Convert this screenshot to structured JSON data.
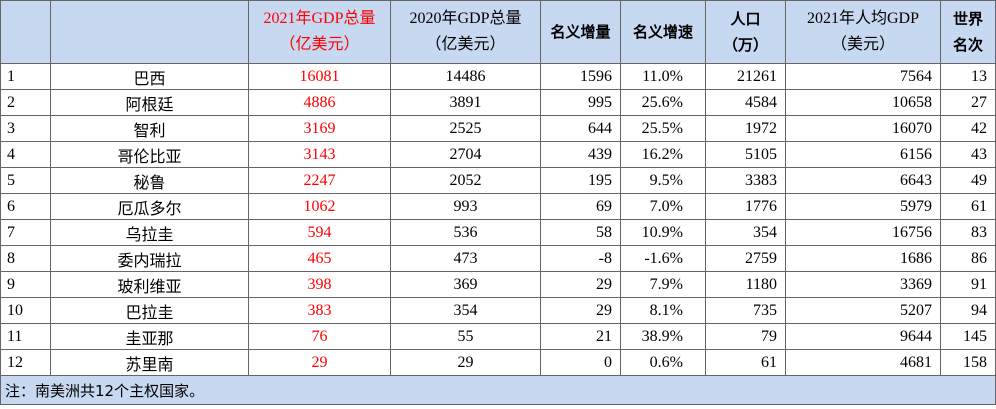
{
  "table": {
    "headers": [
      [],
      [],
      [
        "2021年GDP总量",
        "（亿美元）"
      ],
      [
        "2020年GDP总量",
        "（亿美元）"
      ],
      [
        "名义增量"
      ],
      [
        "名义增速"
      ],
      [
        "人口",
        "（万）"
      ],
      [
        "2021年人均GDP",
        "（美元）"
      ],
      [
        "世界",
        "名次"
      ]
    ],
    "rows": [
      [
        1,
        "巴西",
        16081,
        14486,
        1596,
        "11.0%",
        21261,
        7564,
        13
      ],
      [
        2,
        "阿根廷",
        4886,
        3891,
        995,
        "25.6%",
        4584,
        10658,
        27
      ],
      [
        3,
        "智利",
        3169,
        2525,
        644,
        "25.5%",
        1972,
        16070,
        42
      ],
      [
        4,
        "哥伦比亚",
        3143,
        2704,
        439,
        "16.2%",
        5105,
        6156,
        43
      ],
      [
        5,
        "秘鲁",
        2247,
        2052,
        195,
        "9.5%",
        3383,
        6643,
        49
      ],
      [
        6,
        "厄瓜多尔",
        1062,
        993,
        69,
        "7.0%",
        1776,
        5979,
        61
      ],
      [
        7,
        "乌拉圭",
        594,
        536,
        58,
        "10.9%",
        354,
        16756,
        83
      ],
      [
        8,
        "委内瑞拉",
        465,
        473,
        -8,
        "-1.6%",
        2759,
        1686,
        86
      ],
      [
        9,
        "玻利维亚",
        398,
        369,
        29,
        "7.9%",
        1180,
        3369,
        91
      ],
      [
        10,
        "巴拉圭",
        383,
        354,
        29,
        "8.1%",
        735,
        5207,
        94
      ],
      [
        11,
        "圭亚那",
        76,
        55,
        21,
        "38.9%",
        79,
        9644,
        145
      ],
      [
        12,
        "苏里南",
        29,
        29,
        0,
        "0.6%",
        61,
        4681,
        158
      ]
    ],
    "note": "注：南美洲共12个主权国家。"
  }
}
